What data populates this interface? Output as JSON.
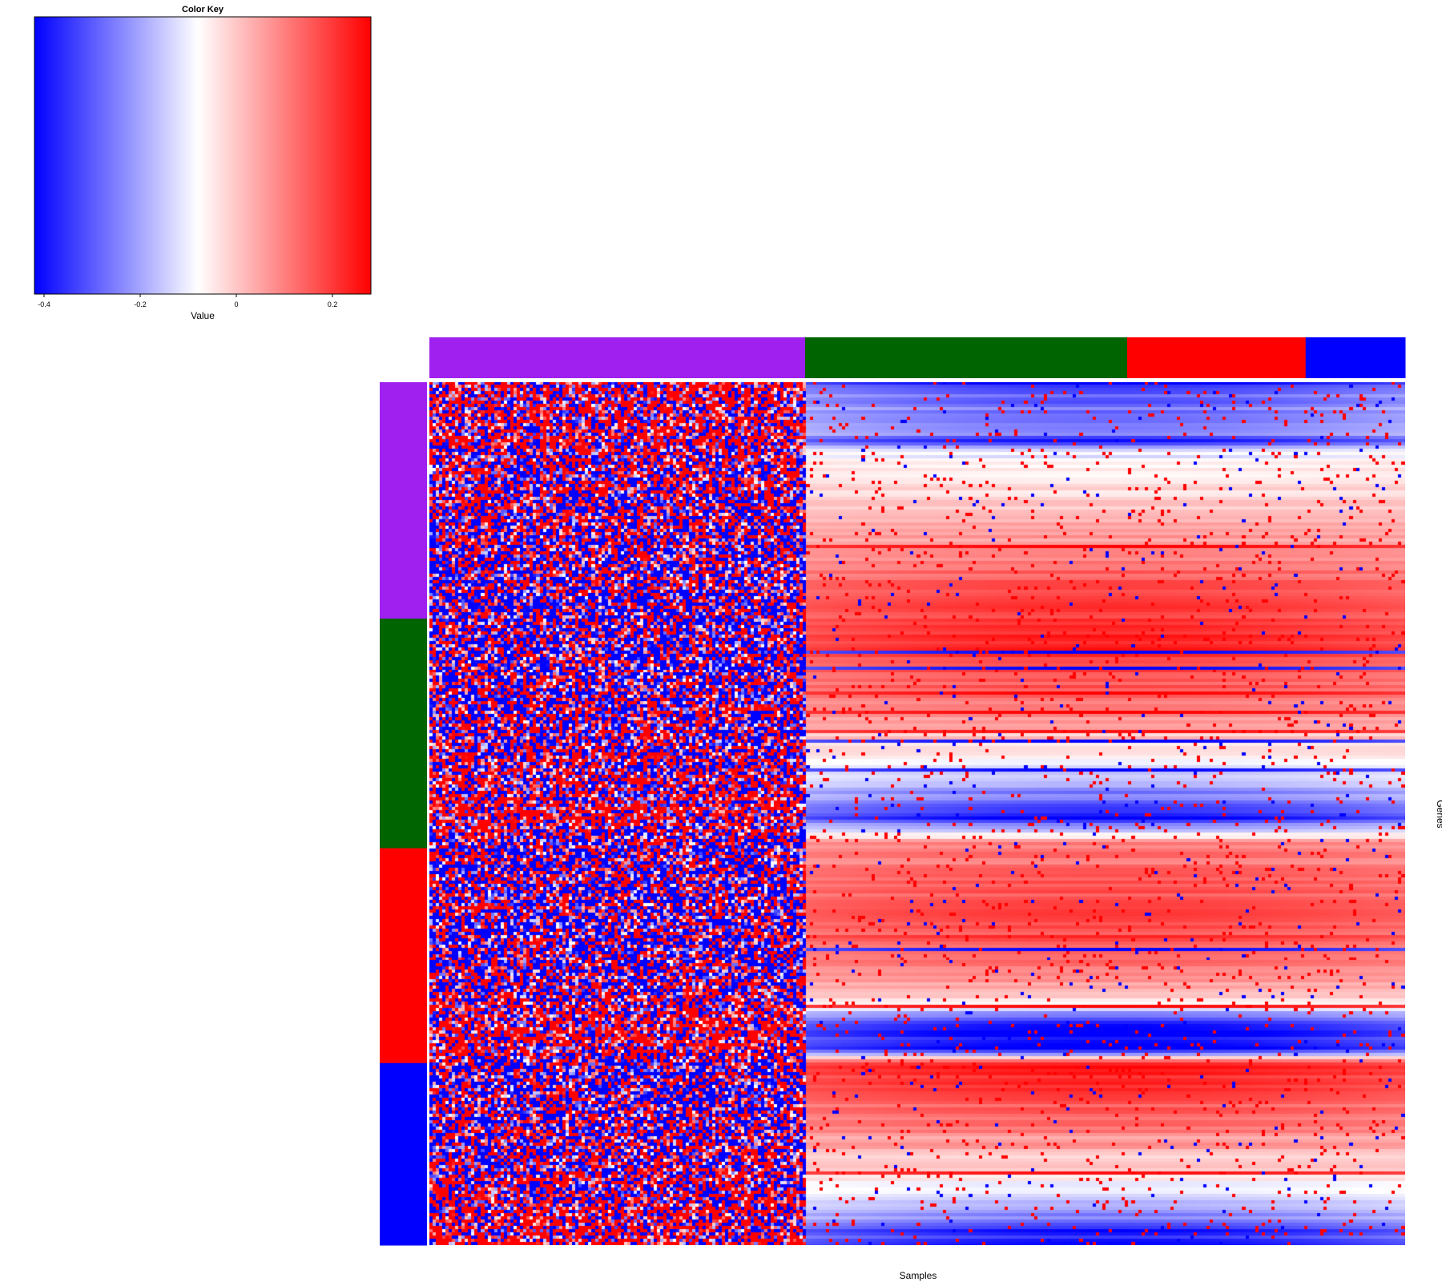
{
  "chart_data": {
    "type": "heatmap",
    "xlabel": "Samples",
    "ylabel": "Genes",
    "color_key": {
      "title": "Color Key",
      "xlabel": "Value",
      "range": [
        -0.42,
        0.28
      ],
      "ticks": [
        -0.4,
        -0.2,
        0,
        0.2
      ],
      "tick_labels": [
        "-0.4",
        "-0.2",
        "0",
        "0.2"
      ],
      "colors": {
        "low": "#0000ff",
        "mid": "#ffffff",
        "high": "#ff0000"
      },
      "white_point": -0.08
    },
    "column_groups": [
      {
        "color": "#a020f0",
        "fraction": 0.385
      },
      {
        "color": "#006400",
        "fraction": 0.33
      },
      {
        "color": "#ff0000",
        "fraction": 0.183
      },
      {
        "color": "#0000ff",
        "fraction": 0.102
      }
    ],
    "row_groups": [
      {
        "color": "#a020f0",
        "fraction": 0.274
      },
      {
        "color": "#006400",
        "fraction": 0.266
      },
      {
        "color": "#ff0000",
        "fraction": 0.249
      },
      {
        "color": "#0000ff",
        "fraction": 0.211
      }
    ],
    "row_profile": [
      {
        "at": 0.0,
        "value": -0.42
      },
      {
        "at": 0.015,
        "value": -0.3
      },
      {
        "at": 0.06,
        "value": -0.22
      },
      {
        "at": 0.068,
        "value": -0.42
      },
      {
        "at": 0.078,
        "value": -0.12
      },
      {
        "at": 0.12,
        "value": -0.04
      },
      {
        "at": 0.2,
        "value": 0.1
      },
      {
        "at": 0.25,
        "value": 0.18
      },
      {
        "at": 0.3,
        "value": 0.24
      },
      {
        "at": 0.36,
        "value": 0.14
      },
      {
        "at": 0.4,
        "value": 0.04
      },
      {
        "at": 0.45,
        "value": -0.14
      },
      {
        "at": 0.49,
        "value": -0.3
      },
      {
        "at": 0.505,
        "value": -0.42
      },
      {
        "at": 0.535,
        "value": 0.1
      },
      {
        "at": 0.62,
        "value": 0.18
      },
      {
        "at": 0.68,
        "value": 0.12
      },
      {
        "at": 0.72,
        "value": -0.05
      },
      {
        "at": 0.745,
        "value": -0.42
      },
      {
        "at": 0.775,
        "value": -0.42
      },
      {
        "at": 0.79,
        "value": 0.26
      },
      {
        "at": 0.86,
        "value": 0.12
      },
      {
        "at": 0.92,
        "value": -0.06
      },
      {
        "at": 0.96,
        "value": -0.22
      },
      {
        "at": 1.0,
        "value": -0.42
      }
    ]
  }
}
